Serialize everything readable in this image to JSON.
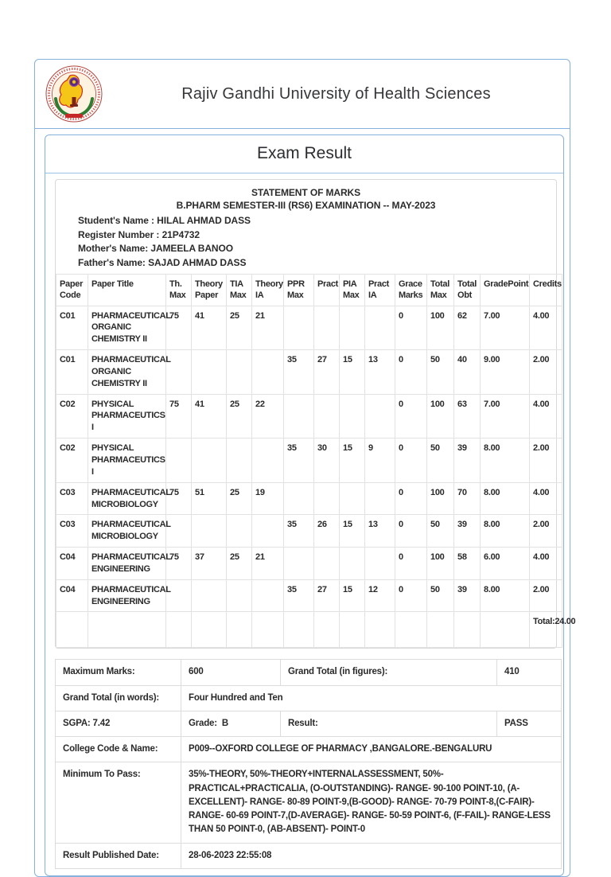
{
  "header": {
    "university_name": "Rajiv Gandhi University of Health Sciences",
    "logo": "rguhs-university-emblem"
  },
  "exam": {
    "title": "Exam Result"
  },
  "statement": {
    "heading": "STATEMENT OF MARKS",
    "subheading": "B.PHARM SEMESTER-III (RS6) EXAMINATION -- MAY-2023",
    "fields": [
      {
        "label": "Student's Name :",
        "value": "HILAL AHMAD DASS"
      },
      {
        "label": "Register Number :",
        "value": "21P4732"
      },
      {
        "label": "Mother's Name:",
        "value": "JAMEELA BANOO"
      },
      {
        "label": "Father's Name:",
        "value": "SAJAD AHMAD DASS"
      }
    ]
  },
  "marks_table": {
    "columns": [
      "Paper Code",
      "Paper Title",
      "Th. Max",
      "Theory Paper",
      "TIA Max",
      "Theory IA",
      "PPR Max",
      "Pract",
      "PIA Max",
      "Pract IA",
      "Grace Marks",
      "Total Max",
      "Total Obt",
      "GradePoint",
      "Credits"
    ],
    "rows": [
      [
        "C01",
        "PHARMACEUTICAL ORGANIC CHEMISTRY II",
        "75",
        "41",
        "25",
        "21",
        "",
        "",
        "",
        "",
        "0",
        "100",
        "62",
        "7.00",
        "4.00"
      ],
      [
        "C01",
        "PHARMACEUTICAL ORGANIC CHEMISTRY II",
        "",
        "",
        "",
        "",
        "35",
        "27",
        "15",
        "13",
        "0",
        "50",
        "40",
        "9.00",
        "2.00"
      ],
      [
        "C02",
        "PHYSICAL PHARMACEUTICS I",
        "75",
        "41",
        "25",
        "22",
        "",
        "",
        "",
        "",
        "0",
        "100",
        "63",
        "7.00",
        "4.00"
      ],
      [
        "C02",
        "PHYSICAL PHARMACEUTICS I",
        "",
        "",
        "",
        "",
        "35",
        "30",
        "15",
        "9",
        "0",
        "50",
        "39",
        "8.00",
        "2.00"
      ],
      [
        "C03",
        "PHARMACEUTICAL MICROBIOLOGY",
        "75",
        "51",
        "25",
        "19",
        "",
        "",
        "",
        "",
        "0",
        "100",
        "70",
        "8.00",
        "4.00"
      ],
      [
        "C03",
        "PHARMACEUTICAL MICROBIOLOGY",
        "",
        "",
        "",
        "",
        "35",
        "26",
        "15",
        "13",
        "0",
        "50",
        "39",
        "8.00",
        "2.00"
      ],
      [
        "C04",
        "PHARMACEUTICAL ENGINEERING",
        "75",
        "37",
        "25",
        "21",
        "",
        "",
        "",
        "",
        "0",
        "100",
        "58",
        "6.00",
        "4.00"
      ],
      [
        "C04",
        "PHARMACEUTICAL ENGINEERING",
        "",
        "",
        "",
        "",
        "35",
        "27",
        "15",
        "12",
        "0",
        "50",
        "39",
        "8.00",
        "2.00"
      ]
    ],
    "total_label": "Total:24.00"
  },
  "summary_table": {
    "rows": [
      [
        {
          "name": "maximum-marks-label",
          "text": "Maximum Marks:"
        },
        {
          "name": "maximum-marks-value",
          "text": "600"
        },
        {
          "name": "grand-total-figures-label",
          "text": "Grand Total (in figures):"
        },
        {
          "name": "grand-total-figures-value",
          "text": "410"
        }
      ],
      [
        {
          "name": "grand-total-words-label",
          "text": "Grand Total (in words):"
        },
        {
          "name": "grand-total-words-value",
          "text": "Four Hundred and Ten",
          "span": 3
        }
      ],
      [
        {
          "name": "sgpa-value",
          "text": "SGPA: 7.42"
        },
        {
          "name": "grade-value",
          "text": "Grade:  B"
        },
        {
          "name": "result-label",
          "text": "Result:"
        },
        {
          "name": "result-value",
          "text": "PASS"
        }
      ],
      [
        {
          "name": "college-code-label",
          "text": "College Code & Name:"
        },
        {
          "name": "college-code-value",
          "text": "P009--OXFORD COLLEGE OF PHARMACY ,BANGALORE.-BENGALURU",
          "span": 3
        }
      ],
      [
        {
          "name": "minimum-to-pass-label",
          "text": "Minimum To Pass:"
        },
        {
          "name": "minimum-to-pass-value",
          "text": "35%-THEORY, 50%-THEORY+INTERNALASSESSMENT, 50%-PRACTICAL+PRACTICALIA, (O-OUTSTANDING)- RANGE- 90-100 POINT-10, (A-EXCELLENT)- RANGE- 80-89 POINT-9,(B-GOOD)- RANGE- 70-79 POINT-8,(C-FAIR)- RANGE- 60-69 POINT-7,(D-AVERAGE)- RANGE- 50-59 POINT-6, (F-FAIL)- RANGE-LESS THAN 50 POINT-0, (AB-ABSENT)- POINT-0",
          "span": 3
        }
      ],
      [
        {
          "name": "result-published-date-label",
          "text": "Result Published Date:"
        },
        {
          "name": "result-published-date-value",
          "text": "28-06-2023 22:55:08",
          "span": 3
        }
      ]
    ]
  },
  "colors": {
    "accent_border": "#85b1dd",
    "grid_border": "#e2e2e2",
    "summary_border": "#dcdcdc",
    "text": "#2b2b2b",
    "logo_yellow": "#f5c518",
    "logo_red": "#c0392b",
    "logo_green": "#2e7d32"
  }
}
